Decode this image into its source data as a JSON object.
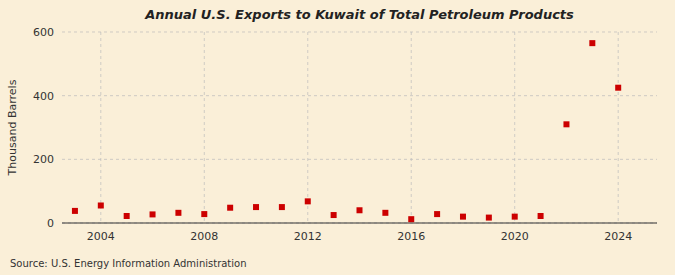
{
  "chart_data": {
    "type": "scatter",
    "title": "Annual U.S. Exports to Kuwait of Total Petroleum Products",
    "ylabel": "Thousand Barrels",
    "annotation": "Source: U.S. Energy Information Administration",
    "x": [
      2003,
      2004,
      2005,
      2006,
      2007,
      2008,
      2009,
      2010,
      2011,
      2012,
      2013,
      2014,
      2015,
      2016,
      2017,
      2018,
      2019,
      2020,
      2021,
      2022,
      2023,
      2024
    ],
    "values": [
      38,
      55,
      22,
      27,
      32,
      28,
      48,
      50,
      50,
      68,
      25,
      40,
      32,
      12,
      28,
      20,
      17,
      20,
      22,
      310,
      565,
      425
    ],
    "color": "#cc0000",
    "marker": "square",
    "xlim": [
      2002.5,
      2025.5
    ],
    "xticks": [
      2004,
      2008,
      2012,
      2016,
      2020,
      2024
    ],
    "ylim": [
      0,
      600
    ],
    "yticks": [
      0,
      200,
      400,
      600
    ],
    "grid": true
  }
}
